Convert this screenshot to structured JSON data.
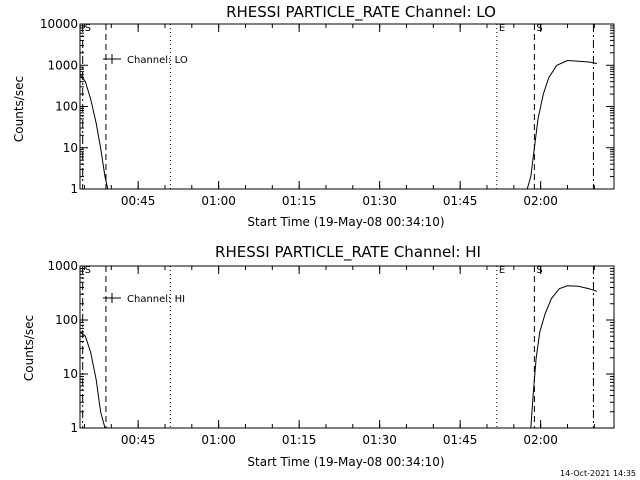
{
  "footer_timestamp": "14-Oct-2021 14:35",
  "chart_data": [
    {
      "type": "line",
      "title": "RHESSI PARTICLE_RATE Channel: LO",
      "xlabel": "Start Time (19-May-08 00:34:10)",
      "ylabel": "Counts/sec",
      "yscale": "log",
      "xlim": [
        "00:34:10",
        "02:13:40"
      ],
      "ylim": [
        1,
        10000
      ],
      "x_ticks": [
        "00:45",
        "01:00",
        "01:15",
        "01:30",
        "01:45",
        "02:00"
      ],
      "y_ticks": [
        {
          "value": 1,
          "label": "1"
        },
        {
          "value": 10,
          "label": "10"
        },
        {
          "value": 100,
          "label": "100"
        },
        {
          "value": 1000,
          "label": "1000"
        },
        {
          "value": 10000,
          "label": "10000"
        }
      ],
      "legend": {
        "label": "Channel: LO",
        "position": "top-left"
      },
      "markers": [
        {
          "time": "00:34:40",
          "label": "S",
          "style": "dashdot"
        },
        {
          "time": "00:39:00",
          "label": "",
          "style": "dashed"
        },
        {
          "time": "00:51:00",
          "label": "",
          "style": "dotted"
        },
        {
          "time": "01:51:50",
          "label": "E",
          "style": "dotted"
        },
        {
          "time": "01:58:50",
          "label": "S",
          "style": "dashed"
        },
        {
          "time": "02:09:50",
          "label": "",
          "style": "dashdot"
        }
      ],
      "series": [
        {
          "segments": [
            [
              [
                "00:34:10",
                600
              ],
              [
                "00:35:10",
                400
              ],
              [
                "00:36:10",
                150
              ],
              [
                "00:37:10",
                40
              ],
              [
                "00:38:00",
                10
              ],
              [
                "00:38:50",
                2
              ],
              [
                "00:39:20",
                1
              ]
            ],
            [
              [
                "01:57:30",
                1
              ],
              [
                "01:58:10",
                2
              ],
              [
                "01:58:50",
                10
              ],
              [
                "01:59:30",
                50
              ],
              [
                "02:00:30",
                200
              ],
              [
                "02:01:30",
                500
              ],
              [
                "02:03:00",
                1000
              ],
              [
                "02:05:00",
                1300
              ],
              [
                "02:07:00",
                1250
              ],
              [
                "02:09:00",
                1200
              ],
              [
                "02:10:30",
                1100
              ]
            ]
          ]
        }
      ]
    },
    {
      "type": "line",
      "title": "RHESSI PARTICLE_RATE Channel: HI",
      "xlabel": "Start Time (19-May-08 00:34:10)",
      "ylabel": "Counts/sec",
      "yscale": "log",
      "xlim": [
        "00:34:10",
        "02:13:40"
      ],
      "ylim": [
        1,
        1000
      ],
      "x_ticks": [
        "00:45",
        "01:00",
        "01:15",
        "01:30",
        "01:45",
        "02:00"
      ],
      "y_ticks": [
        {
          "value": 1,
          "label": "1"
        },
        {
          "value": 10,
          "label": "10"
        },
        {
          "value": 100,
          "label": "100"
        },
        {
          "value": 1000,
          "label": "1000"
        }
      ],
      "legend": {
        "label": "Channel: HI",
        "position": "top-left"
      },
      "markers": [
        {
          "time": "00:34:40",
          "label": "S",
          "style": "dashdot"
        },
        {
          "time": "00:39:00",
          "label": "",
          "style": "dashed"
        },
        {
          "time": "00:51:00",
          "label": "",
          "style": "dotted"
        },
        {
          "time": "01:51:50",
          "label": "E",
          "style": "dotted"
        },
        {
          "time": "01:58:50",
          "label": "S",
          "style": "dashed"
        },
        {
          "time": "02:09:50",
          "label": "",
          "style": "dashdot"
        }
      ],
      "series": [
        {
          "segments": [
            [
              [
                "00:34:10",
                60
              ],
              [
                "00:35:10",
                50
              ],
              [
                "00:36:10",
                25
              ],
              [
                "00:37:10",
                8
              ],
              [
                "00:38:00",
                2
              ],
              [
                "00:38:50",
                1
              ]
            ],
            [
              [
                "01:58:10",
                1
              ],
              [
                "01:58:40",
                5
              ],
              [
                "01:59:10",
                20
              ],
              [
                "01:59:50",
                60
              ],
              [
                "02:00:50",
                130
              ],
              [
                "02:02:00",
                250
              ],
              [
                "02:03:30",
                380
              ],
              [
                "02:05:00",
                430
              ],
              [
                "02:07:00",
                420
              ],
              [
                "02:09:00",
                380
              ],
              [
                "02:10:30",
                340
              ]
            ]
          ]
        }
      ]
    }
  ]
}
